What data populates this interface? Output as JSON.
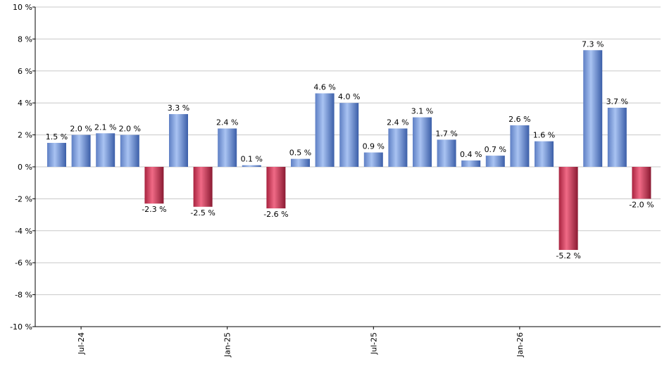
{
  "chart_data": {
    "type": "bar",
    "title": "",
    "xlabel": "",
    "ylabel": "",
    "ylim": [
      -10,
      10
    ],
    "y_ticks": [
      -10,
      -8,
      -6,
      -4,
      -2,
      0,
      2,
      4,
      6,
      8,
      10
    ],
    "y_tick_suffix": " %",
    "value_suffix": " %",
    "grid": true,
    "legend": "none",
    "x_tick_labels": [
      {
        "label": "Jul-24",
        "index": 1
      },
      {
        "label": "Jan-25",
        "index": 7
      },
      {
        "label": "Jul-25",
        "index": 13
      },
      {
        "label": "Jan-26",
        "index": 19
      }
    ],
    "values": [
      1.5,
      2.0,
      2.1,
      2.0,
      -2.3,
      3.3,
      -2.5,
      2.4,
      0.1,
      -2.6,
      0.5,
      4.6,
      4.0,
      0.9,
      2.4,
      3.1,
      1.7,
      0.4,
      0.7,
      2.6,
      1.6,
      -5.2,
      7.3,
      3.7,
      -2.0
    ],
    "colors": {
      "positive": "#6f94dc",
      "negative": "#c0304c",
      "grid": "#c8c8c8",
      "axis": "#000000"
    }
  }
}
